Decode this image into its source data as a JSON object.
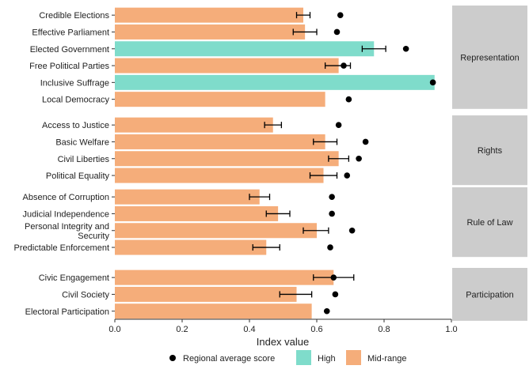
{
  "chart_data": {
    "type": "bar",
    "orientation": "horizontal",
    "xlabel": "Index value",
    "xlim": [
      0,
      1
    ],
    "xticks": [
      "0.0",
      "0.2",
      "0.4",
      "0.6",
      "0.8",
      "1.0"
    ],
    "grid": false,
    "legend_position": "bottom",
    "legend": {
      "point_label": "Regional average score",
      "items": [
        {
          "label": "High",
          "color": "#7fdccb"
        },
        {
          "label": "Mid-range",
          "color": "#f5ad7a"
        }
      ]
    },
    "panels": [
      {
        "name": "Representation",
        "rows": [
          {
            "label": "Credible Elections",
            "value": 0.56,
            "level": "Mid-range",
            "err": [
              0.54,
              0.58
            ],
            "avg": 0.67
          },
          {
            "label": "Effective Parliament",
            "value": 0.565,
            "level": "Mid-range",
            "err": [
              0.53,
              0.6
            ],
            "avg": 0.66
          },
          {
            "label": "Elected Government",
            "value": 0.77,
            "level": "High",
            "err": [
              0.735,
              0.805
            ],
            "avg": 0.865
          },
          {
            "label": "Free Political Parties",
            "value": 0.665,
            "level": "Mid-range",
            "err": [
              0.625,
              0.7
            ],
            "avg": 0.68
          },
          {
            "label": "Inclusive Suffrage",
            "value": 0.95,
            "level": "High",
            "err": null,
            "avg": 0.945
          },
          {
            "label": "Local Democracy",
            "value": 0.625,
            "level": "Mid-range",
            "err": null,
            "avg": 0.695
          }
        ]
      },
      {
        "name": "Rights",
        "rows": [
          {
            "label": "Access to Justice",
            "value": 0.47,
            "level": "Mid-range",
            "err": [
              0.445,
              0.495
            ],
            "avg": 0.665
          },
          {
            "label": "Basic Welfare",
            "value": 0.625,
            "level": "Mid-range",
            "err": [
              0.59,
              0.66
            ],
            "avg": 0.745
          },
          {
            "label": "Civil Liberties",
            "value": 0.665,
            "level": "Mid-range",
            "err": [
              0.635,
              0.695
            ],
            "avg": 0.725
          },
          {
            "label": "Political Equality",
            "value": 0.62,
            "level": "Mid-range",
            "err": [
              0.58,
              0.66
            ],
            "avg": 0.69
          }
        ]
      },
      {
        "name": "Rule of Law",
        "rows": [
          {
            "label": "Absence of Corruption",
            "value": 0.43,
            "level": "Mid-range",
            "err": [
              0.4,
              0.46
            ],
            "avg": 0.645
          },
          {
            "label": "Judicial Independence",
            "value": 0.485,
            "level": "Mid-range",
            "err": [
              0.45,
              0.52
            ],
            "avg": 0.645
          },
          {
            "label": "Personal Integrity and\nSecurity",
            "value": 0.6,
            "level": "Mid-range",
            "err": [
              0.56,
              0.635
            ],
            "avg": 0.705
          },
          {
            "label": "Predictable Enforcement",
            "value": 0.45,
            "level": "Mid-range",
            "err": [
              0.41,
              0.49
            ],
            "avg": 0.64
          }
        ]
      },
      {
        "name": "Participation",
        "rows": [
          {
            "label": "Civic Engagement",
            "value": 0.65,
            "level": "Mid-range",
            "err": [
              0.59,
              0.71
            ],
            "avg": 0.65
          },
          {
            "label": "Civil Society",
            "value": 0.54,
            "level": "Mid-range",
            "err": [
              0.49,
              0.585
            ],
            "avg": 0.655
          },
          {
            "label": "Electoral Participation",
            "value": 0.585,
            "level": "Mid-range",
            "err": null,
            "avg": 0.63
          }
        ]
      }
    ]
  },
  "colors": {
    "high": "#7fdccb",
    "mid": "#f5ad7a",
    "strip": "#cccccc",
    "point": "#000000",
    "axis": "#333333"
  }
}
